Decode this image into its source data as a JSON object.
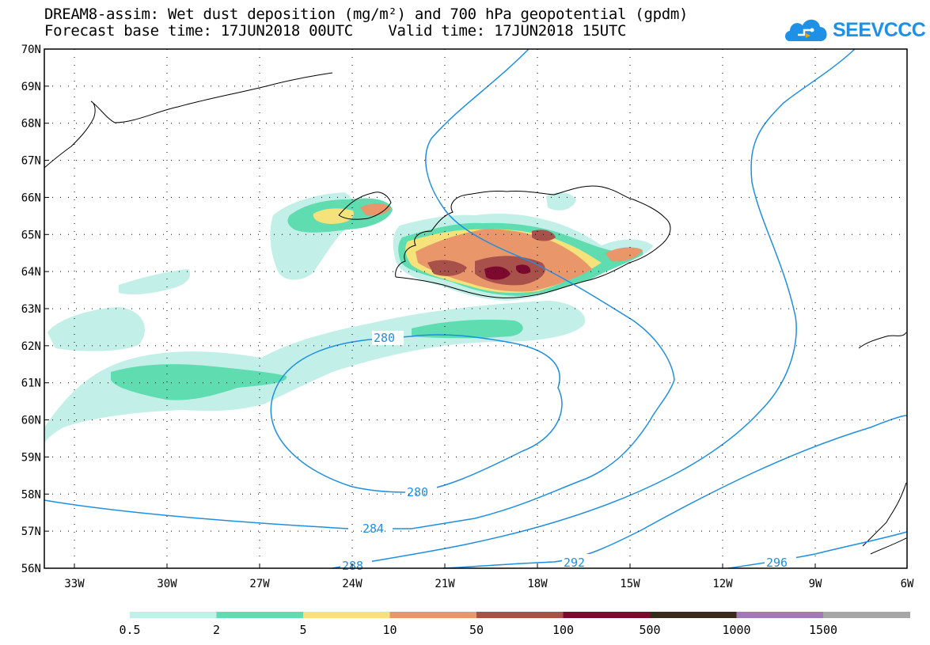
{
  "title": {
    "line1": "DREAM8-assim: Wet dust deposition (mg/m²) and 700 hPa geopotential (gpdm)",
    "line2": "Forecast base time: 17JUN2018 00UTC    Valid time: 17JUN2018 15UTC"
  },
  "logo": {
    "text": "SEEVCCC",
    "icon": "cloud-icon"
  },
  "axes": {
    "lat_labels": [
      "70N",
      "69N",
      "68N",
      "67N",
      "66N",
      "65N",
      "64N",
      "63N",
      "62N",
      "61N",
      "60N",
      "59N",
      "58N",
      "57N",
      "56N"
    ],
    "lon_labels": [
      "33W",
      "30W",
      "27W",
      "24W",
      "21W",
      "18W",
      "15W",
      "12W",
      "9W",
      "6W"
    ]
  },
  "contour_labels": {
    "c280_upper": "280",
    "c280_lower": "280",
    "c284": "284",
    "c288": "288",
    "c292": "292",
    "c296": "296"
  },
  "colorbar": {
    "labels": [
      "0.5",
      "2",
      "5",
      "10",
      "50",
      "100",
      "500",
      "1000",
      "1500"
    ],
    "colors": [
      "#c2f0e8",
      "#5fdcb0",
      "#f6e27a",
      "#e8966a",
      "#a8504a",
      "#7d0a2e",
      "#3a2a1a",
      "#a07ab4",
      "#a6a6a6"
    ]
  },
  "colors": {
    "contour": "#1e8fe0",
    "coast": "#000000"
  }
}
